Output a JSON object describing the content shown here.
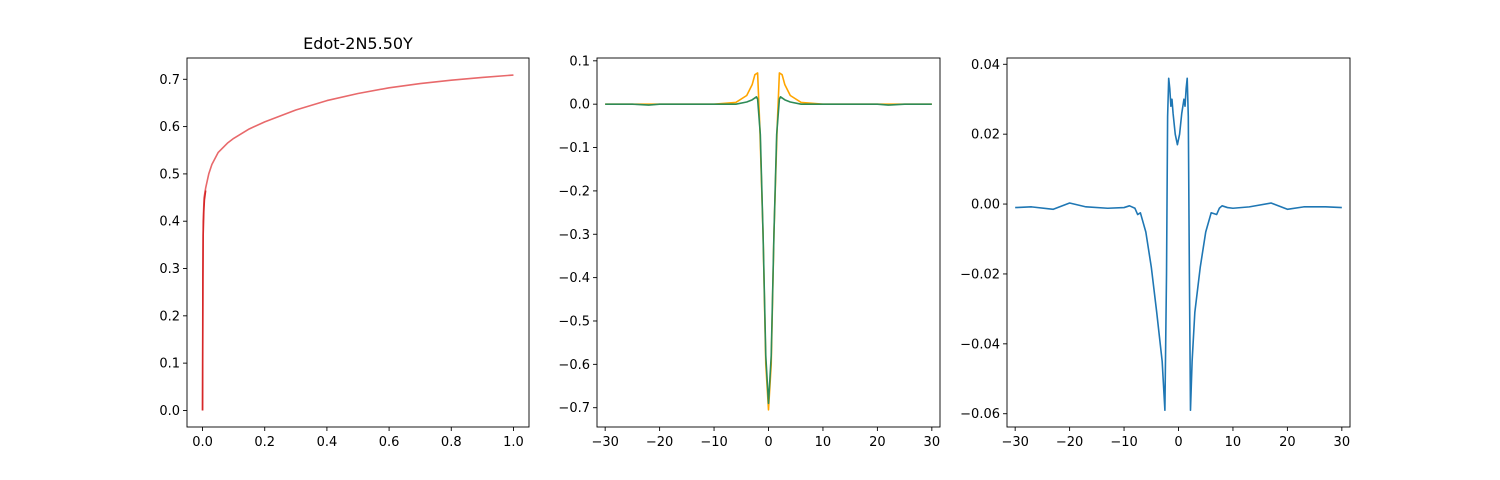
{
  "chart_data": [
    {
      "type": "line",
      "title": "Edot-2N5.50Y",
      "xlabel": "",
      "ylabel": "",
      "xlim": [
        -0.05,
        1.05
      ],
      "ylim": [
        -0.035,
        0.745
      ],
      "xticks": [
        0.0,
        0.2,
        0.4,
        0.6,
        0.8,
        1.0
      ],
      "xtick_labels": [
        "0.0",
        "0.2",
        "0.4",
        "0.6",
        "0.8",
        "1.0"
      ],
      "yticks": [
        0.0,
        0.1,
        0.2,
        0.3,
        0.4,
        0.5,
        0.6,
        0.7
      ],
      "ytick_labels": [
        "0.0",
        "0.1",
        "0.2",
        "0.3",
        "0.4",
        "0.5",
        "0.6",
        "0.7"
      ],
      "grid": false,
      "series": [
        {
          "color": "#e8696b",
          "x": [
            0.0,
            0.002,
            0.005,
            0.01,
            0.02,
            0.03,
            0.05,
            0.08,
            0.1,
            0.15,
            0.2,
            0.3,
            0.4,
            0.5,
            0.6,
            0.7,
            0.8,
            0.9,
            1.0
          ],
          "y": [
            0.0,
            0.4,
            0.45,
            0.47,
            0.5,
            0.52,
            0.545,
            0.565,
            0.575,
            0.595,
            0.61,
            0.635,
            0.655,
            0.67,
            0.682,
            0.691,
            0.698,
            0.704,
            0.709
          ]
        },
        {
          "color": "#d62728",
          "x": [
            0.0,
            0.001,
            0.002,
            0.004,
            0.006,
            0.01
          ],
          "y": [
            0.0,
            0.28,
            0.37,
            0.42,
            0.445,
            0.465
          ]
        }
      ]
    },
    {
      "type": "line",
      "title": "",
      "xlabel": "",
      "ylabel": "",
      "xlim": [
        -31.5,
        31.5
      ],
      "ylim": [
        -0.7445,
        0.1065
      ],
      "xticks": [
        -30,
        -20,
        -10,
        0,
        10,
        20,
        30
      ],
      "xtick_labels": [
        "−30",
        "−20",
        "−10",
        "0",
        "10",
        "20",
        "30"
      ],
      "yticks": [
        0.1,
        0.0,
        -0.1,
        -0.2,
        -0.3,
        -0.4,
        -0.5,
        -0.6,
        -0.7
      ],
      "ytick_labels": [
        "0.1",
        "0.0",
        "−0.1",
        "−0.2",
        "−0.3",
        "−0.4",
        "−0.5",
        "−0.6",
        "−0.7"
      ],
      "grid": false,
      "series": [
        {
          "color": "#ffa500",
          "x": [
            -30,
            -25,
            -20,
            -15,
            -10,
            -6,
            -4,
            -3,
            -2.5,
            -2,
            -1.6,
            -1,
            -0.5,
            0,
            0.5,
            1,
            1.6,
            2,
            2.5,
            3,
            4,
            6,
            10,
            15,
            20,
            25,
            30
          ],
          "y": [
            0.0,
            0.0,
            0.0,
            0.0,
            0.0,
            0.004,
            0.02,
            0.045,
            0.068,
            0.072,
            -0.05,
            -0.3,
            -0.6,
            -0.705,
            -0.6,
            -0.3,
            -0.05,
            0.072,
            0.068,
            0.045,
            0.02,
            0.004,
            0.0,
            0.0,
            0.0,
            0.0,
            0.0
          ]
        },
        {
          "color": "#2e8b57",
          "x": [
            -30,
            -25,
            -22,
            -20,
            -15,
            -10,
            -6,
            -4,
            -3,
            -2.2,
            -2,
            -1.5,
            -1,
            -0.5,
            0,
            0.5,
            1,
            1.5,
            2,
            2.2,
            3,
            4,
            6,
            10,
            15,
            20,
            22,
            25,
            30
          ],
          "y": [
            0.0,
            0.0,
            -0.002,
            0.0,
            0.0,
            0.0,
            0.0,
            0.005,
            0.01,
            0.017,
            0.012,
            -0.07,
            -0.3,
            -0.58,
            -0.69,
            -0.58,
            -0.3,
            -0.07,
            0.012,
            0.017,
            0.01,
            0.005,
            0.0,
            0.0,
            0.0,
            0.0,
            -0.002,
            0.0,
            0.0
          ]
        }
      ]
    },
    {
      "type": "line",
      "title": "",
      "xlabel": "",
      "ylabel": "",
      "xlim": [
        -31.5,
        31.5
      ],
      "ylim": [
        -0.0638,
        0.0418
      ],
      "xticks": [
        -30,
        -20,
        -10,
        0,
        10,
        20,
        30
      ],
      "xtick_labels": [
        "−30",
        "−20",
        "−10",
        "0",
        "10",
        "20",
        "30"
      ],
      "yticks": [
        0.04,
        0.02,
        0.0,
        -0.02,
        -0.04,
        -0.06
      ],
      "ytick_labels": [
        "0.04",
        "0.02",
        "0.00",
        "−0.02",
        "−0.04",
        "−0.06"
      ],
      "grid": false,
      "series": [
        {
          "color": "#1f77b4",
          "x": [
            -30,
            -27,
            -23,
            -20,
            -17,
            -13,
            -10,
            -9,
            -8,
            -7.5,
            -7,
            -6,
            -5,
            -4,
            -3,
            -2.5,
            -2.2,
            -2.0,
            -1.8,
            -1.6,
            -1.4,
            -1.2,
            -1.0,
            -0.6,
            -0.2,
            0.2,
            0.6,
            1.0,
            1.2,
            1.4,
            1.6,
            1.8,
            2.0,
            2.2,
            2.5,
            3,
            4,
            5,
            6,
            7,
            7.5,
            8,
            9,
            10,
            13,
            17,
            20,
            23,
            27,
            30
          ],
          "y": [
            -0.001,
            -0.0008,
            -0.0015,
            0.0003,
            -0.0008,
            -0.0012,
            -0.001,
            -0.0005,
            -0.0012,
            -0.003,
            -0.0025,
            -0.008,
            -0.018,
            -0.031,
            -0.045,
            -0.059,
            -0.02,
            0.025,
            0.036,
            0.033,
            0.028,
            0.03,
            0.026,
            0.02,
            0.017,
            0.02,
            0.026,
            0.03,
            0.028,
            0.033,
            0.036,
            0.025,
            -0.02,
            -0.059,
            -0.045,
            -0.031,
            -0.018,
            -0.008,
            -0.0025,
            -0.003,
            -0.0012,
            -0.0005,
            -0.001,
            -0.0012,
            -0.0008,
            0.0003,
            -0.0015,
            -0.0008,
            -0.0008,
            -0.001
          ]
        }
      ]
    }
  ]
}
